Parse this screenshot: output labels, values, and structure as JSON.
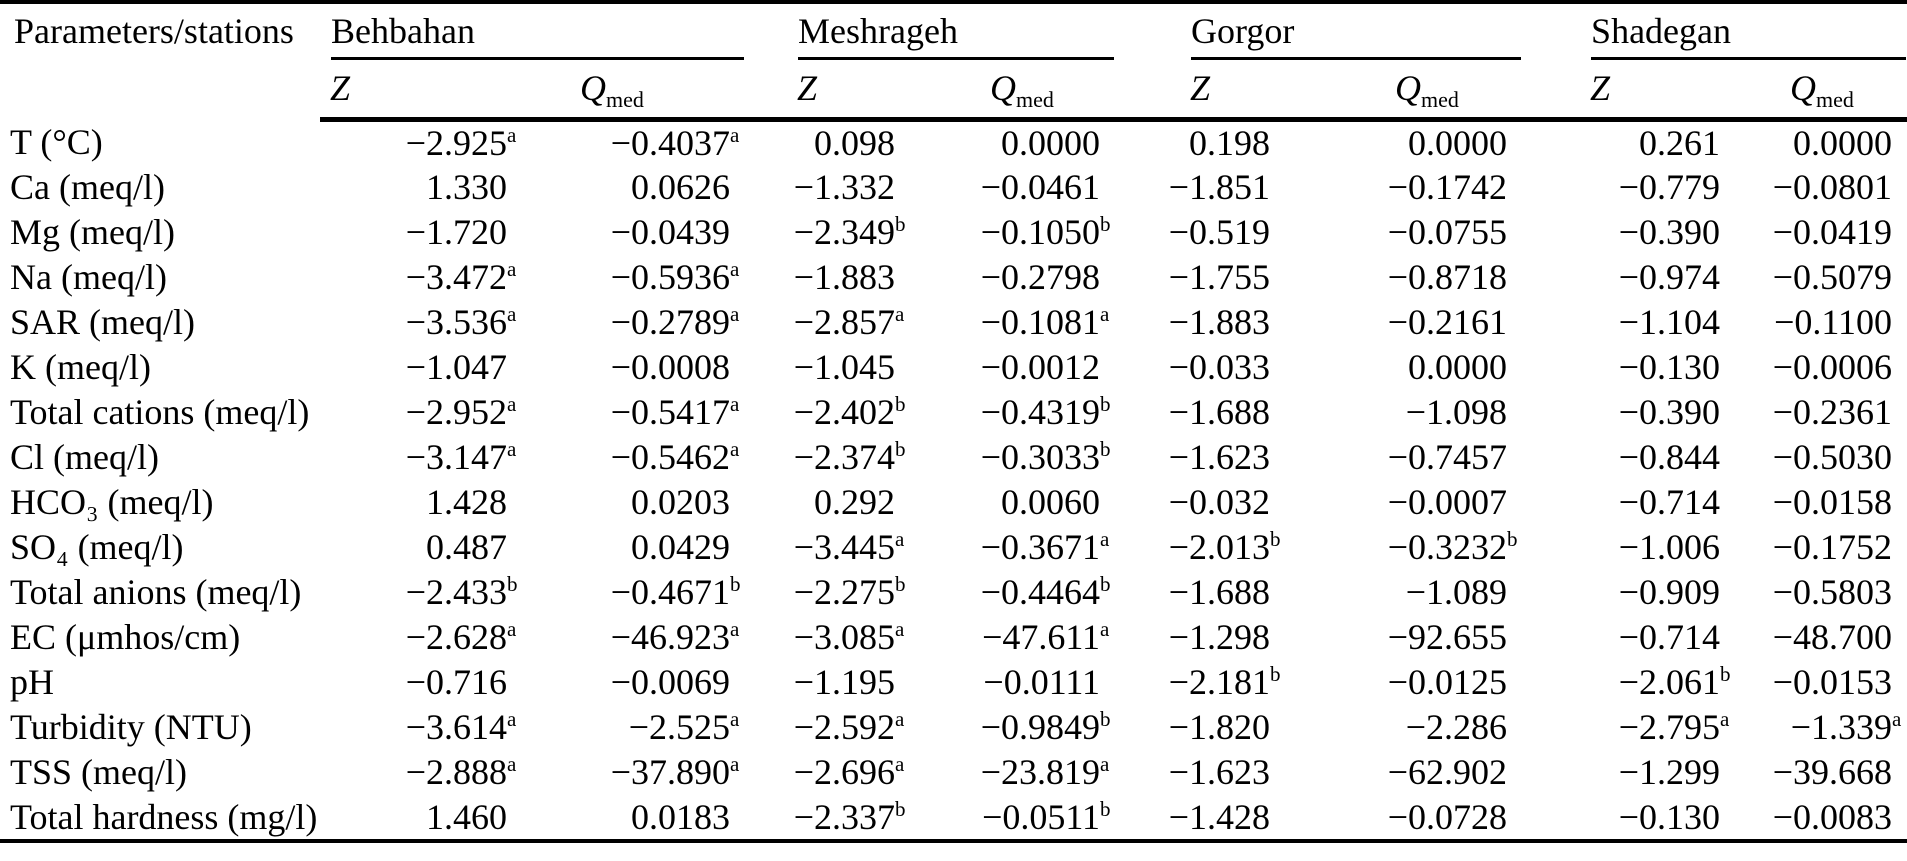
{
  "table": {
    "param_header": "Parameters/stations",
    "stations": [
      {
        "name": "Behbahan"
      },
      {
        "name": "Meshrageh"
      },
      {
        "name": "Gorgor"
      },
      {
        "name": "Shadegan"
      }
    ],
    "z_label": "Z",
    "q_label": "Q",
    "q_sub": "med",
    "column_keys": [
      "behbahan-z",
      "behbahan-qmed",
      "meshrageh-z",
      "meshrageh-qmed",
      "gorgor-z",
      "gorgor-qmed",
      "shadegan-z",
      "shadegan-qmed"
    ],
    "text_color": "#000000",
    "background_color": "#ffffff",
    "rows": [
      {
        "param": "T (°C)",
        "cells": [
          {
            "v": "−2.925",
            "s": "a"
          },
          {
            "v": "−0.4037",
            "s": "a"
          },
          {
            "v": "0.098",
            "s": ""
          },
          {
            "v": "0.0000",
            "s": ""
          },
          {
            "v": "0.198",
            "s": ""
          },
          {
            "v": "0.0000",
            "s": ""
          },
          {
            "v": "0.261",
            "s": ""
          },
          {
            "v": "0.0000",
            "s": ""
          }
        ]
      },
      {
        "param": "Ca (meq/l)",
        "cells": [
          {
            "v": "1.330",
            "s": ""
          },
          {
            "v": "0.0626",
            "s": ""
          },
          {
            "v": "−1.332",
            "s": ""
          },
          {
            "v": "−0.0461",
            "s": ""
          },
          {
            "v": "−1.851",
            "s": ""
          },
          {
            "v": "−0.1742",
            "s": ""
          },
          {
            "v": "−0.779",
            "s": ""
          },
          {
            "v": "−0.0801",
            "s": ""
          }
        ]
      },
      {
        "param": "Mg (meq/l)",
        "cells": [
          {
            "v": "−1.720",
            "s": ""
          },
          {
            "v": "−0.0439",
            "s": ""
          },
          {
            "v": "−2.349",
            "s": "b"
          },
          {
            "v": "−0.1050",
            "s": "b"
          },
          {
            "v": "−0.519",
            "s": ""
          },
          {
            "v": "−0.0755",
            "s": ""
          },
          {
            "v": "−0.390",
            "s": ""
          },
          {
            "v": "−0.0419",
            "s": ""
          }
        ]
      },
      {
        "param": "Na (meq/l)",
        "cells": [
          {
            "v": "−3.472",
            "s": "a"
          },
          {
            "v": "−0.5936",
            "s": "a"
          },
          {
            "v": "−1.883",
            "s": ""
          },
          {
            "v": "−0.2798",
            "s": ""
          },
          {
            "v": "−1.755",
            "s": ""
          },
          {
            "v": "−0.8718",
            "s": ""
          },
          {
            "v": "−0.974",
            "s": ""
          },
          {
            "v": "−0.5079",
            "s": ""
          }
        ]
      },
      {
        "param": "SAR (meq/l)",
        "cells": [
          {
            "v": "−3.536",
            "s": "a"
          },
          {
            "v": "−0.2789",
            "s": "a"
          },
          {
            "v": "−2.857",
            "s": "a"
          },
          {
            "v": "−0.1081",
            "s": "a"
          },
          {
            "v": "−1.883",
            "s": ""
          },
          {
            "v": "−0.2161",
            "s": ""
          },
          {
            "v": "−1.104",
            "s": ""
          },
          {
            "v": "−0.1100",
            "s": ""
          }
        ]
      },
      {
        "param": "K (meq/l)",
        "cells": [
          {
            "v": "−1.047",
            "s": ""
          },
          {
            "v": "−0.0008",
            "s": ""
          },
          {
            "v": "−1.045",
            "s": ""
          },
          {
            "v": "−0.0012",
            "s": ""
          },
          {
            "v": "−0.033",
            "s": ""
          },
          {
            "v": "0.0000",
            "s": ""
          },
          {
            "v": "−0.130",
            "s": ""
          },
          {
            "v": "−0.0006",
            "s": ""
          }
        ]
      },
      {
        "param": "Total cations (meq/l)",
        "cells": [
          {
            "v": "−2.952",
            "s": "a"
          },
          {
            "v": "−0.5417",
            "s": "a"
          },
          {
            "v": "−2.402",
            "s": "b"
          },
          {
            "v": "−0.4319",
            "s": "b"
          },
          {
            "v": "−1.688",
            "s": ""
          },
          {
            "v": "−1.098",
            "s": ""
          },
          {
            "v": "−0.390",
            "s": ""
          },
          {
            "v": "−0.2361",
            "s": ""
          }
        ]
      },
      {
        "param": "Cl (meq/l)",
        "cells": [
          {
            "v": "−3.147",
            "s": "a"
          },
          {
            "v": "−0.5462",
            "s": "a"
          },
          {
            "v": "−2.374",
            "s": "b"
          },
          {
            "v": "−0.3033",
            "s": "b"
          },
          {
            "v": "−1.623",
            "s": ""
          },
          {
            "v": "−0.7457",
            "s": ""
          },
          {
            "v": "−0.844",
            "s": ""
          },
          {
            "v": "−0.5030",
            "s": ""
          }
        ]
      },
      {
        "param": "HCO₃ (meq/l)",
        "cells": [
          {
            "v": "1.428",
            "s": ""
          },
          {
            "v": "0.0203",
            "s": ""
          },
          {
            "v": "0.292",
            "s": ""
          },
          {
            "v": "0.0060",
            "s": ""
          },
          {
            "v": "−0.032",
            "s": ""
          },
          {
            "v": "−0.0007",
            "s": ""
          },
          {
            "v": "−0.714",
            "s": ""
          },
          {
            "v": "−0.0158",
            "s": ""
          }
        ]
      },
      {
        "param": "SO₄ (meq/l)",
        "cells": [
          {
            "v": "0.487",
            "s": ""
          },
          {
            "v": "0.0429",
            "s": ""
          },
          {
            "v": "−3.445",
            "s": "a"
          },
          {
            "v": "−0.3671",
            "s": "a"
          },
          {
            "v": "−2.013",
            "s": "b"
          },
          {
            "v": "−0.3232",
            "s": "b"
          },
          {
            "v": "−1.006",
            "s": ""
          },
          {
            "v": "−0.1752",
            "s": ""
          }
        ]
      },
      {
        "param": "Total anions (meq/l)",
        "cells": [
          {
            "v": "−2.433",
            "s": "b"
          },
          {
            "v": "−0.4671",
            "s": "b"
          },
          {
            "v": "−2.275",
            "s": "b"
          },
          {
            "v": "−0.4464",
            "s": "b"
          },
          {
            "v": "−1.688",
            "s": ""
          },
          {
            "v": "−1.089",
            "s": ""
          },
          {
            "v": "−0.909",
            "s": ""
          },
          {
            "v": "−0.5803",
            "s": ""
          }
        ]
      },
      {
        "param": "EC (μmhos/cm)",
        "cells": [
          {
            "v": "−2.628",
            "s": "a"
          },
          {
            "v": "−46.923",
            "s": "a"
          },
          {
            "v": "−3.085",
            "s": "a"
          },
          {
            "v": "−47.611",
            "s": "a"
          },
          {
            "v": "−1.298",
            "s": ""
          },
          {
            "v": "−92.655",
            "s": ""
          },
          {
            "v": "−0.714",
            "s": ""
          },
          {
            "v": "−48.700",
            "s": ""
          }
        ]
      },
      {
        "param": "pH",
        "cells": [
          {
            "v": "−0.716",
            "s": ""
          },
          {
            "v": "−0.0069",
            "s": ""
          },
          {
            "v": "−1.195",
            "s": ""
          },
          {
            "v": "−0.0111",
            "s": ""
          },
          {
            "v": "−2.181",
            "s": "b"
          },
          {
            "v": "−0.0125",
            "s": ""
          },
          {
            "v": "−2.061",
            "s": "b"
          },
          {
            "v": "−0.0153",
            "s": ""
          }
        ]
      },
      {
        "param": "Turbidity (NTU)",
        "cells": [
          {
            "v": "−3.614",
            "s": "a"
          },
          {
            "v": "−2.525",
            "s": "a"
          },
          {
            "v": "−2.592",
            "s": "a"
          },
          {
            "v": "−0.9849",
            "s": "b"
          },
          {
            "v": "−1.820",
            "s": ""
          },
          {
            "v": "−2.286",
            "s": ""
          },
          {
            "v": "−2.795",
            "s": "a"
          },
          {
            "v": "−1.339",
            "s": "a"
          }
        ]
      },
      {
        "param": "TSS (meq/l)",
        "cells": [
          {
            "v": "−2.888",
            "s": "a"
          },
          {
            "v": "−37.890",
            "s": "a"
          },
          {
            "v": "−2.696",
            "s": "a"
          },
          {
            "v": "−23.819",
            "s": "a"
          },
          {
            "v": "−1.623",
            "s": ""
          },
          {
            "v": "−62.902",
            "s": ""
          },
          {
            "v": "−1.299",
            "s": ""
          },
          {
            "v": "−39.668",
            "s": ""
          }
        ]
      },
      {
        "param": "Total hardness (mg/l)",
        "cells": [
          {
            "v": "1.460",
            "s": ""
          },
          {
            "v": "0.0183",
            "s": ""
          },
          {
            "v": "−2.337",
            "s": "b"
          },
          {
            "v": "−0.0511",
            "s": "b"
          },
          {
            "v": "−1.428",
            "s": ""
          },
          {
            "v": "−0.0728",
            "s": ""
          },
          {
            "v": "−0.130",
            "s": ""
          },
          {
            "v": "−0.0083",
            "s": ""
          }
        ]
      }
    ]
  }
}
